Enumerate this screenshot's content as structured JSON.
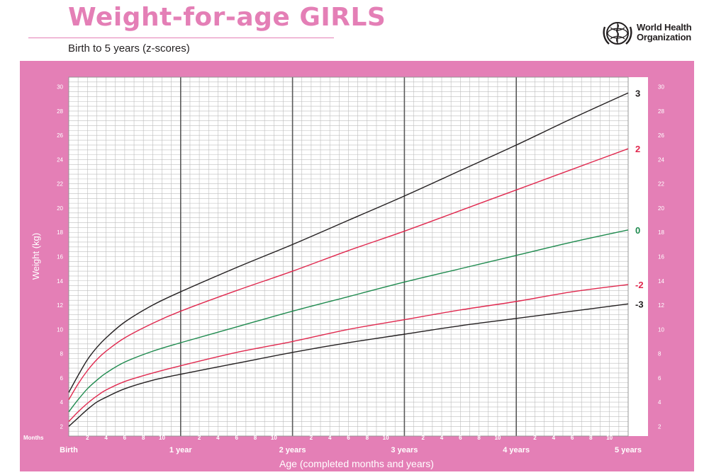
{
  "header": {
    "title": "Weight-for-age GIRLS",
    "subtitle": "Birth to 5 years (z-scores)",
    "org_line1": "World Health",
    "org_line2": "Organization",
    "logo_icon": "who-emblem-icon"
  },
  "colors": {
    "frame": "#e47fb6",
    "grid": "#bdbdbd",
    "grid_major": "#5a5a5a",
    "z3": "#231f20",
    "z2": "#e0284e",
    "z0": "#1e8a4e"
  },
  "chart_data": {
    "type": "line",
    "title": "Weight-for-age GIRLS",
    "subtitle": "Birth to 5 years (z-scores)",
    "xlabel": "Age (completed months and years)",
    "ylabel": "Weight (kg)",
    "x_unit_label": "Months",
    "xlim": [
      0,
      60
    ],
    "ylim": [
      1.2,
      30.8
    ],
    "y_ticks": [
      2,
      4,
      6,
      8,
      10,
      12,
      14,
      16,
      18,
      20,
      22,
      24,
      26,
      28,
      30
    ],
    "month_ticks": [
      2,
      4,
      6,
      8,
      10
    ],
    "year_labels": [
      "Birth",
      "1 year",
      "2 years",
      "3 years",
      "4 years",
      "5 years"
    ],
    "grid": true,
    "x": [
      0,
      1,
      2,
      3,
      4,
      6,
      9,
      12,
      18,
      24,
      30,
      36,
      42,
      48,
      54,
      60
    ],
    "series": [
      {
        "name": "3",
        "color": "#231f20",
        "values": [
          4.8,
          6.2,
          7.5,
          8.5,
          9.3,
          10.6,
          12.0,
          13.1,
          15.1,
          17.0,
          19.0,
          21.0,
          23.1,
          25.2,
          27.4,
          29.5
        ]
      },
      {
        "name": "2",
        "color": "#e0284e",
        "values": [
          4.2,
          5.5,
          6.6,
          7.5,
          8.2,
          9.3,
          10.5,
          11.5,
          13.2,
          14.8,
          16.5,
          18.1,
          19.8,
          21.5,
          23.2,
          24.9
        ]
      },
      {
        "name": "0",
        "color": "#1e8a4e",
        "values": [
          3.2,
          4.2,
          5.1,
          5.8,
          6.4,
          7.3,
          8.2,
          8.9,
          10.2,
          11.5,
          12.7,
          13.9,
          15.0,
          16.1,
          17.2,
          18.2
        ]
      },
      {
        "name": "-2",
        "color": "#e0284e",
        "values": [
          2.4,
          3.2,
          3.9,
          4.5,
          5.0,
          5.7,
          6.4,
          7.0,
          8.1,
          9.0,
          10.0,
          10.8,
          11.6,
          12.3,
          13.1,
          13.7
        ]
      },
      {
        "name": "-3",
        "color": "#231f20",
        "values": [
          2.0,
          2.7,
          3.4,
          4.0,
          4.4,
          5.1,
          5.8,
          6.3,
          7.2,
          8.1,
          8.9,
          9.6,
          10.3,
          10.9,
          11.5,
          12.1
        ]
      }
    ]
  }
}
